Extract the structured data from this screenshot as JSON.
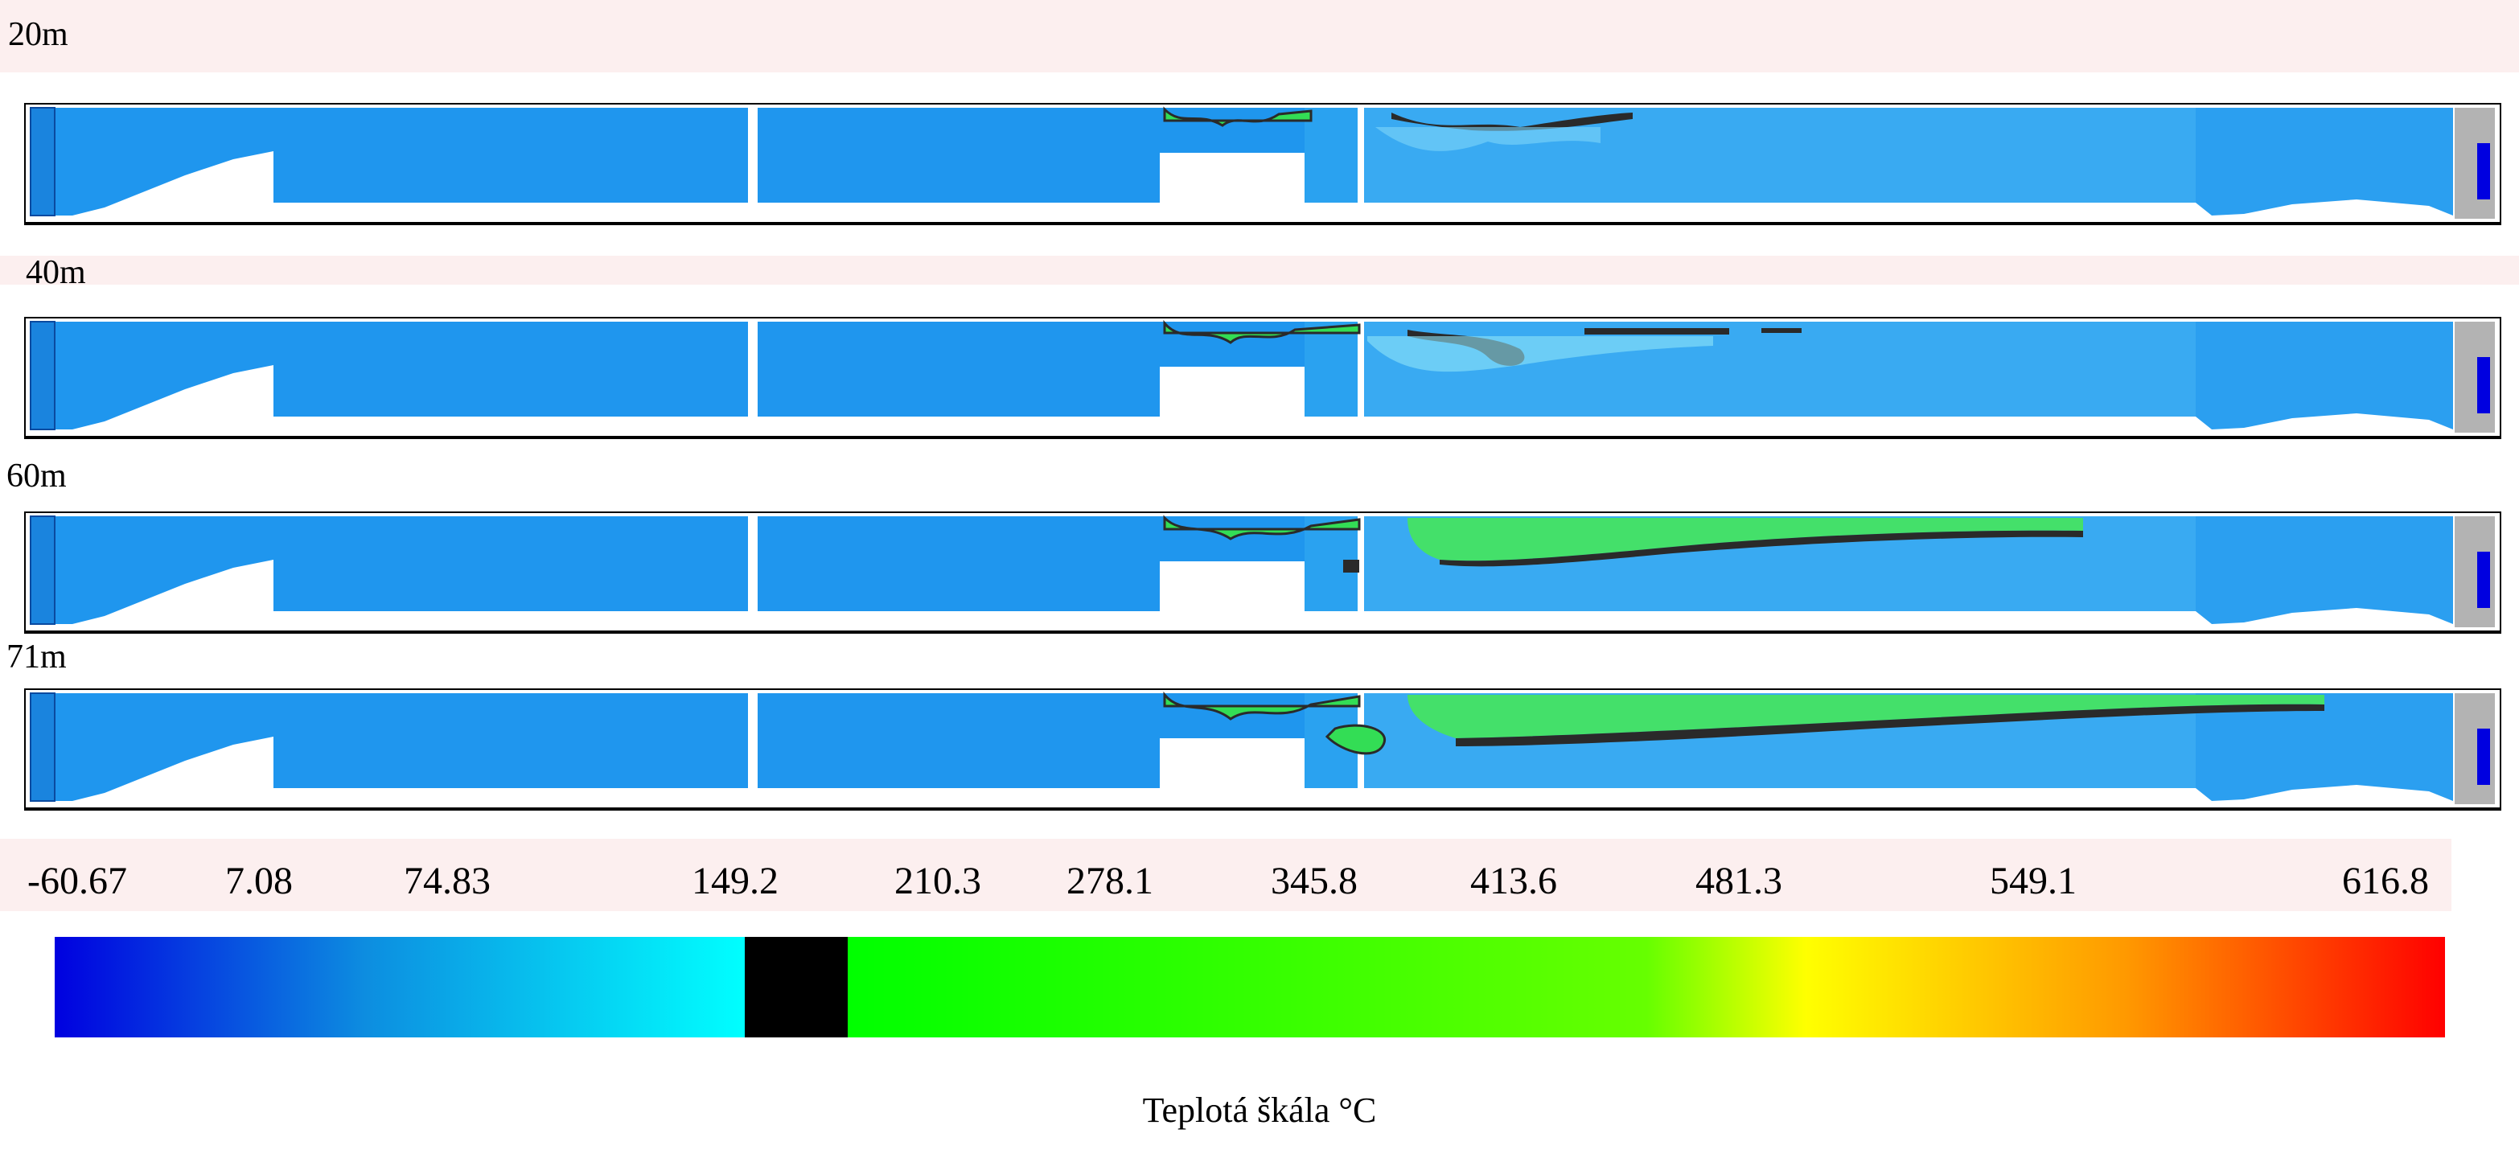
{
  "frames": [
    {
      "label": "20m"
    },
    {
      "label": "40m"
    },
    {
      "label": "60m"
    },
    {
      "label": "71m"
    }
  ],
  "legend": {
    "ticks": [
      "-60.67",
      "7.08",
      "74.83",
      "149.2",
      "210.3",
      "278.1",
      "345.8",
      "413.6",
      "481.3",
      "549.1",
      "616.8"
    ],
    "title": "Teplotá škála °C",
    "colors": {
      "cold": "#0000e0",
      "mid_blue": "#0d8de0",
      "cyan": "#00ffff",
      "threshold_band": "#000000",
      "green": "#00ff00",
      "yellow": "#ffff00",
      "orange": "#ff9900",
      "hot": "#ff0000"
    }
  },
  "scene_colors": {
    "tunnel_fill": "#1f96ee",
    "smoke_front": "#2a2a2a",
    "warm_zone": "#33dd55",
    "portal_grey": "#b3b3b3"
  }
}
